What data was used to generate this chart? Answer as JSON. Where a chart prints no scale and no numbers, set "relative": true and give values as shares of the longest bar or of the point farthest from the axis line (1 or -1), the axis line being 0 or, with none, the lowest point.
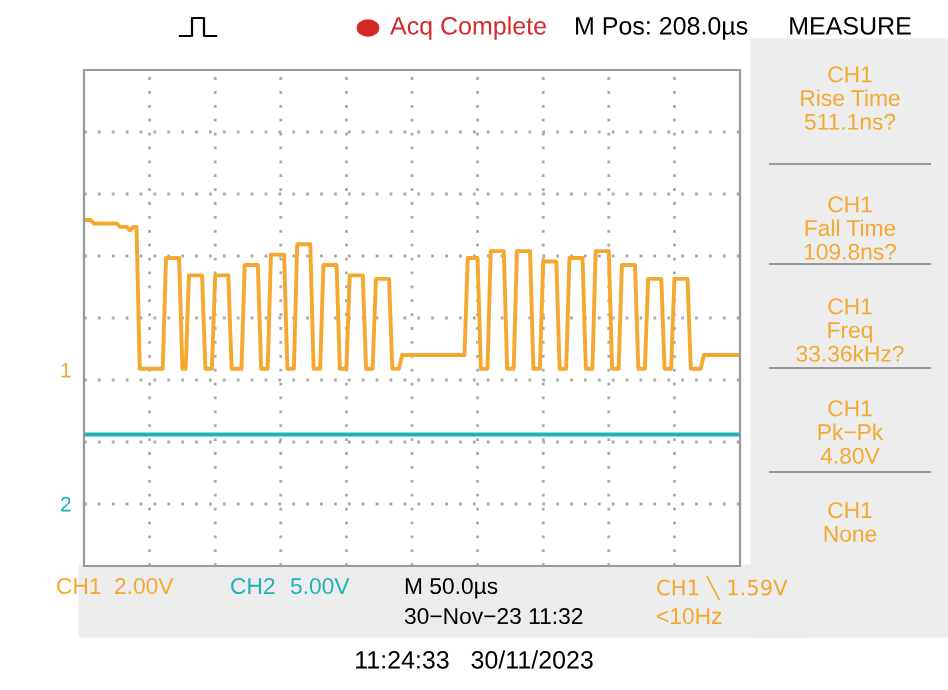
{
  "chart_data": {
    "type": "line",
    "relative": true,
    "categories": [
      null,
      null,
      null,
      null,
      null,
      null,
      null,
      null,
      null,
      null,
      null,
      null,
      null,
      null,
      null,
      null,
      null,
      null,
      null,
      null,
      null,
      null,
      null,
      null,
      null,
      null,
      null,
      null,
      null,
      null,
      null,
      null,
      null,
      null,
      null,
      null,
      null,
      null,
      null,
      null,
      null,
      null,
      null,
      null,
      null,
      null,
      null,
      null,
      null,
      null,
      null,
      null,
      null,
      null,
      null,
      null,
      null,
      null,
      null,
      null,
      null,
      null,
      null,
      null,
      null,
      null,
      null,
      null,
      null,
      null,
      null,
      null,
      null,
      null,
      null,
      null,
      null,
      null,
      null,
      null,
      null,
      null,
      null,
      null,
      null,
      null,
      null,
      null,
      null,
      null,
      null,
      null,
      null,
      null,
      null,
      null,
      null,
      null,
      null,
      null,
      null,
      null,
      null,
      null,
      null,
      null,
      null,
      null,
      null,
      null,
      null,
      null,
      null,
      null,
      null,
      null,
      null,
      null,
      null,
      null,
      null,
      null,
      null,
      null,
      null,
      null,
      null,
      null,
      null,
      null,
      null,
      null,
      null,
      null,
      null,
      null,
      null,
      null,
      null,
      null,
      null,
      null,
      null,
      null,
      null,
      null,
      null,
      null,
      null,
      null,
      null,
      null,
      null,
      null,
      null,
      null,
      null,
      null,
      null,
      null,
      null,
      null,
      null,
      null,
      null,
      null,
      null,
      null,
      null,
      null,
      null,
      null,
      null,
      null,
      null,
      null,
      null,
      null,
      null,
      null,
      null,
      null,
      null,
      null,
      null,
      null,
      null,
      null,
      null,
      null,
      null,
      null,
      null,
      null,
      null,
      null,
      null,
      null,
      null,
      null,
      null
    ],
    "grid": true,
    "marker": "none",
    "line_style": "solid",
    "series": [
      {
        "name": "CH1",
        "color": "#f5a830",
        "values": [
          1.0,
          1.0,
          1.0,
          0.99,
          0.99,
          0.99,
          0.99,
          0.99,
          0.99,
          0.99,
          0.99,
          0.98,
          0.98,
          0.98,
          0.97,
          0.98,
          0.98,
          0.57,
          0.57,
          0.57,
          0.57,
          0.57,
          0.57,
          0.57,
          0.57,
          0.89,
          0.89,
          0.89,
          0.89,
          0.89,
          0.57,
          0.57,
          0.84,
          0.84,
          0.84,
          0.84,
          0.84,
          0.57,
          0.57,
          0.57,
          0.84,
          0.84,
          0.84,
          0.84,
          0.84,
          0.57,
          0.57,
          0.57,
          0.57,
          0.87,
          0.87,
          0.87,
          0.87,
          0.87,
          0.57,
          0.57,
          0.57,
          0.9,
          0.9,
          0.9,
          0.9,
          0.9,
          0.57,
          0.57,
          0.57,
          0.93,
          0.93,
          0.93,
          0.93,
          0.93,
          0.57,
          0.57,
          0.57,
          0.87,
          0.87,
          0.87,
          0.87,
          0.87,
          0.57,
          0.57,
          0.57,
          0.84,
          0.84,
          0.84,
          0.84,
          0.84,
          0.57,
          0.57,
          0.57,
          0.83,
          0.83,
          0.83,
          0.83,
          0.83,
          0.57,
          0.57,
          0.57,
          0.61,
          0.61,
          0.61,
          0.61,
          0.61,
          0.61,
          0.61,
          0.61,
          0.61,
          0.61,
          0.61,
          0.61,
          0.61,
          0.61,
          0.61,
          0.61,
          0.61,
          0.61,
          0.61,
          0.61,
          0.89,
          0.89,
          0.89,
          0.89,
          0.57,
          0.57,
          0.57,
          0.91,
          0.91,
          0.91,
          0.91,
          0.91,
          0.57,
          0.57,
          0.57,
          0.91,
          0.91,
          0.91,
          0.91,
          0.91,
          0.57,
          0.57,
          0.57,
          0.88,
          0.88,
          0.88,
          0.88,
          0.88,
          0.57,
          0.57,
          0.57,
          0.89,
          0.89,
          0.89,
          0.89,
          0.89,
          0.57,
          0.57,
          0.57,
          0.91,
          0.91,
          0.91,
          0.91,
          0.91,
          0.57,
          0.57,
          0.57,
          0.87,
          0.87,
          0.87,
          0.87,
          0.87,
          0.57,
          0.57,
          0.57,
          0.83,
          0.83,
          0.83,
          0.83,
          0.83,
          0.57,
          0.57,
          0.57,
          0.83,
          0.83,
          0.83,
          0.83,
          0.83,
          0.57,
          0.57,
          0.57,
          0.57,
          0.61,
          0.61,
          0.61,
          0.61,
          0.61,
          0.61,
          0.61,
          0.61,
          0.61,
          0.61,
          0.61,
          0.61
        ]
      },
      {
        "name": "CH2",
        "color": "#1fb3b8",
        "values": [
          0.38,
          0.38,
          0.38,
          0.38,
          0.38,
          0.38,
          0.38,
          0.38,
          0.38,
          0.38,
          0.38,
          0.38,
          0.38,
          0.38,
          0.38,
          0.38,
          0.38,
          0.38,
          0.38,
          0.38,
          0.38,
          0.38,
          0.38,
          0.38,
          0.38,
          0.38,
          0.38,
          0.38,
          0.38,
          0.38,
          0.38,
          0.38,
          0.38,
          0.38,
          0.38,
          0.38,
          0.38,
          0.38,
          0.38,
          0.38,
          0.38,
          0.38,
          0.38,
          0.38,
          0.38,
          0.38,
          0.38,
          0.38,
          0.38,
          0.38,
          0.38,
          0.38,
          0.38,
          0.38,
          0.38,
          0.38,
          0.38,
          0.38,
          0.38,
          0.38,
          0.38,
          0.38,
          0.38,
          0.38,
          0.38,
          0.38,
          0.38,
          0.38,
          0.38,
          0.38,
          0.38,
          0.38,
          0.38,
          0.38,
          0.38,
          0.38,
          0.38,
          0.38,
          0.38,
          0.38,
          0.38,
          0.38,
          0.38,
          0.38,
          0.38,
          0.38,
          0.38,
          0.38,
          0.38,
          0.38,
          0.38,
          0.38,
          0.38,
          0.38,
          0.38,
          0.38,
          0.38,
          0.38,
          0.38,
          0.38,
          0.38,
          0.38,
          0.38,
          0.38,
          0.38,
          0.38,
          0.38,
          0.38,
          0.38,
          0.38,
          0.38,
          0.38,
          0.38,
          0.38,
          0.38,
          0.38,
          0.38,
          0.38,
          0.38,
          0.38,
          0.38,
          0.38,
          0.38,
          0.38,
          0.38,
          0.38,
          0.38,
          0.38,
          0.38,
          0.38,
          0.38,
          0.38,
          0.38,
          0.38,
          0.38,
          0.38,
          0.38,
          0.38,
          0.38,
          0.38,
          0.38,
          0.38,
          0.38,
          0.38,
          0.38,
          0.38,
          0.38,
          0.38,
          0.38,
          0.38,
          0.38,
          0.38,
          0.38,
          0.38,
          0.38,
          0.38,
          0.38,
          0.38,
          0.38,
          0.38,
          0.38,
          0.38,
          0.38,
          0.38,
          0.38,
          0.38,
          0.38,
          0.38,
          0.38,
          0.38,
          0.38,
          0.38,
          0.38,
          0.38,
          0.38,
          0.38,
          0.38,
          0.38,
          0.38,
          0.38,
          0.38,
          0.38,
          0.38,
          0.38,
          0.38,
          0.38,
          0.38,
          0.38,
          0.38,
          0.38,
          0.38,
          0.38,
          0.38,
          0.38,
          0.38,
          0.38,
          0.38,
          0.38,
          0.38,
          0.38,
          0.38
        ]
      }
    ],
    "annotations": [
      "Acq Complete",
      "M Pos: 208.0µs",
      "MEASURE",
      "CH1\nRise Time\n511.1ns?",
      "CH1\nFall Time\n109.8ns?",
      "CH1\nFreq\n33.36kHz?",
      "CH1\nPk−Pk\n4.80V",
      "CH1\nNone",
      "2.00V",
      "5.00V",
      "M 50.0µs",
      "30−Nov−23 11:32",
      "CH1 ╲ 1.59V",
      "<10Hz",
      "1",
      "2",
      "11:24:33   30/11/2023"
    ]
  }
}
